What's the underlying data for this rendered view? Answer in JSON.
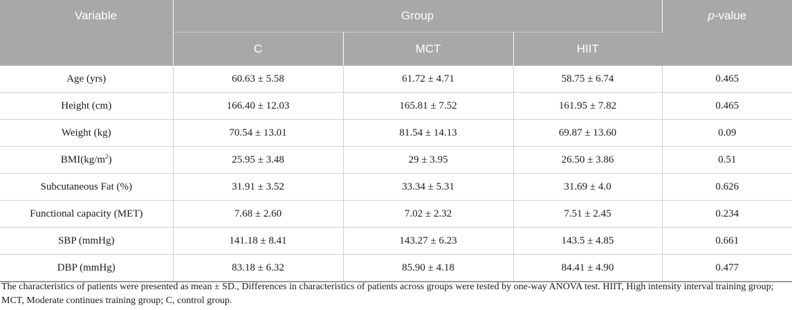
{
  "header": {
    "variable": "Variable",
    "group": "Group",
    "pvalue_italic": "p",
    "pvalue_rest": "-value",
    "groups": [
      "C",
      "MCT",
      "HIIT"
    ]
  },
  "rows": [
    {
      "variable": "Age (yrs)",
      "c": "60.63 ± 5.58",
      "mct": "61.72 ± 4.71",
      "hiit": "58.75 ± 6.74",
      "p": "0.465"
    },
    {
      "variable": "Height (cm)",
      "c": "166.40 ± 12.03",
      "mct": "165.81 ± 7.52",
      "hiit": "161.95 ± 7.82",
      "p": "0.465"
    },
    {
      "variable": "Weight (kg)",
      "c": "70.54 ± 13.01",
      "mct": "81.54 ± 14.13",
      "hiit": "69.87 ± 13.60",
      "p": "0.09"
    },
    {
      "variable": "BMI(kg/m",
      "variable_sup": "2",
      "variable_end": ")",
      "c": "25.95 ± 3.48",
      "mct": "29 ± 3.95",
      "hiit": "26.50 ± 3.86",
      "p": "0.51"
    },
    {
      "variable": "Subcutaneous Fat (%)",
      "c": "31.91 ± 3.52",
      "mct": "33.34 ± 5.31",
      "hiit": "31.69 ± 4.0",
      "p": "0.626"
    },
    {
      "variable": "Functional capacity (MET)",
      "c": "7.68 ± 2.60",
      "mct": "7.02 ± 2.32",
      "hiit": "7.51 ± 2.45",
      "p": "0.234"
    },
    {
      "variable": "SBP (mmHg)",
      "c": "141.18 ± 8.41",
      "mct": "143.27 ± 6.23",
      "hiit": "143.5 ± 4.85",
      "p": "0.661"
    },
    {
      "variable": "DBP (mmHg)",
      "c": "83.18 ± 6.32",
      "mct": "85.90 ± 4.18",
      "hiit": "84.41 ± 4.90",
      "p": "0.477"
    }
  ],
  "footnote": "The characteristics of patients were presented as mean ± SD., Differences in characteristics of patients across groups were tested by one-way ANOVA test. HIIT, High intensity interval training group; MCT, Moderate continues training group; C, control group.",
  "colors": {
    "header_bg": "#a8a8a8",
    "header_text": "#ffffff",
    "grid": "#cfcfcf"
  }
}
